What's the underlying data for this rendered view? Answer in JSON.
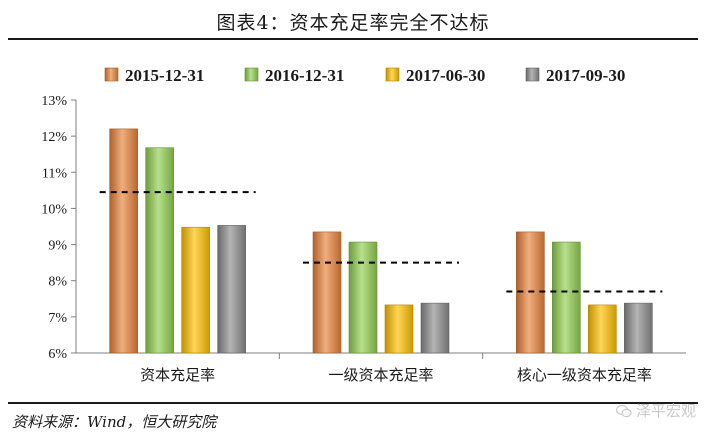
{
  "figure_title": "图表4：资本充足率完全不达标",
  "source": "资料来源：Wind，恒大研究院",
  "watermark": "泽平宏观",
  "chart_data": {
    "type": "bar",
    "categories": [
      "资本充足率",
      "一级资本充足率",
      "核心一级资本充足率"
    ],
    "series": [
      {
        "name": "2015-12-31",
        "color": "#e8833a",
        "values": [
          12.2,
          9.35,
          9.35
        ]
      },
      {
        "name": "2016-12-31",
        "color": "#92d050",
        "values": [
          11.68,
          9.07,
          9.07
        ]
      },
      {
        "name": "2017-06-30",
        "color": "#ffc000",
        "values": [
          9.48,
          7.33,
          7.33
        ]
      },
      {
        "name": "2017-09-30",
        "color": "#8c8c8c",
        "values": [
          9.53,
          7.38,
          7.38
        ]
      }
    ],
    "reference_lines": [
      10.45,
      8.5,
      7.7
    ],
    "ylim": [
      6,
      13
    ],
    "yticks": [
      "6%",
      "7%",
      "8%",
      "9%",
      "10%",
      "11%",
      "12%",
      "13%"
    ],
    "legend_position": "top",
    "grid": false
  }
}
